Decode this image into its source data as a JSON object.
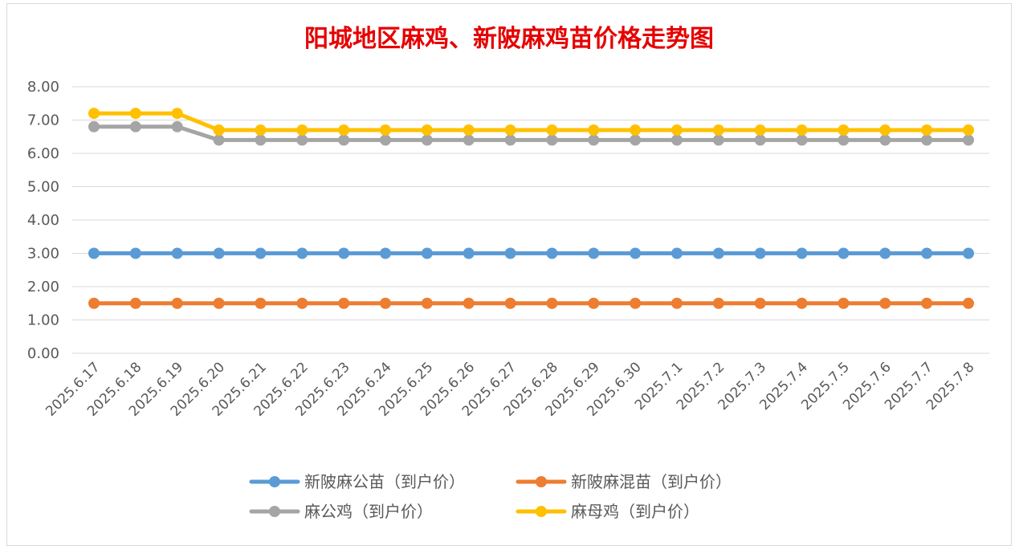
{
  "chart_data": {
    "type": "line",
    "title": "阳城地区麻鸡、新陂麻鸡苗价格走势图",
    "xlabel": "",
    "ylabel": "",
    "ylim": [
      0,
      8
    ],
    "yticks": [
      "0.00",
      "1.00",
      "2.00",
      "3.00",
      "4.00",
      "5.00",
      "6.00",
      "7.00",
      "8.00"
    ],
    "grid": true,
    "legend_position": "bottom",
    "categories": [
      "2025.6.17",
      "2025.6.18",
      "2025.6.19",
      "2025.6.20",
      "2025.6.21",
      "2025.6.22",
      "2025.6.23",
      "2025.6.24",
      "2025.6.25",
      "2025.6.26",
      "2025.6.27",
      "2025.6.28",
      "2025.6.29",
      "2025.6.30",
      "2025.7.1",
      "2025.7.2",
      "2025.7.3",
      "2025.7.4",
      "2025.7.5",
      "2025.7.6",
      "2025.7.7",
      "2025.7.8"
    ],
    "series": [
      {
        "name": "新陂麻公苗（到户价）",
        "color": "#5b9bd5",
        "values": [
          3.0,
          3.0,
          3.0,
          3.0,
          3.0,
          3.0,
          3.0,
          3.0,
          3.0,
          3.0,
          3.0,
          3.0,
          3.0,
          3.0,
          3.0,
          3.0,
          3.0,
          3.0,
          3.0,
          3.0,
          3.0,
          3.0
        ]
      },
      {
        "name": "新陂麻混苗（到户价）",
        "color": "#ed7d31",
        "values": [
          1.5,
          1.5,
          1.5,
          1.5,
          1.5,
          1.5,
          1.5,
          1.5,
          1.5,
          1.5,
          1.5,
          1.5,
          1.5,
          1.5,
          1.5,
          1.5,
          1.5,
          1.5,
          1.5,
          1.5,
          1.5,
          1.5
        ]
      },
      {
        "name": "麻公鸡（到户价）",
        "color": "#a5a5a5",
        "values": [
          6.8,
          6.8,
          6.8,
          6.4,
          6.4,
          6.4,
          6.4,
          6.4,
          6.4,
          6.4,
          6.4,
          6.4,
          6.4,
          6.4,
          6.4,
          6.4,
          6.4,
          6.4,
          6.4,
          6.4,
          6.4,
          6.4
        ]
      },
      {
        "name": "麻母鸡（到户价）",
        "color": "#ffc000",
        "values": [
          7.2,
          7.2,
          7.2,
          6.7,
          6.7,
          6.7,
          6.7,
          6.7,
          6.7,
          6.7,
          6.7,
          6.7,
          6.7,
          6.7,
          6.7,
          6.7,
          6.7,
          6.7,
          6.7,
          6.7,
          6.7,
          6.7
        ]
      }
    ]
  }
}
